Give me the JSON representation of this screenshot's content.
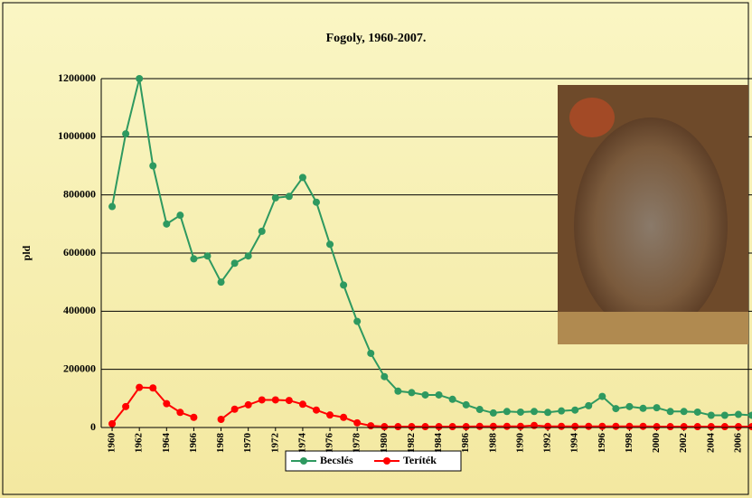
{
  "chart_data": {
    "type": "line",
    "title": "Fogoly, 1960-2007.",
    "y_label": "pld",
    "x": [
      1960,
      1961,
      1962,
      1963,
      1964,
      1965,
      1966,
      1967,
      1968,
      1969,
      1970,
      1971,
      1972,
      1973,
      1974,
      1975,
      1976,
      1977,
      1978,
      1979,
      1980,
      1981,
      1982,
      1983,
      1984,
      1985,
      1986,
      1987,
      1988,
      1989,
      1990,
      1991,
      1992,
      1993,
      1994,
      1995,
      1996,
      1997,
      1998,
      1999,
      2000,
      2001,
      2002,
      2003,
      2004,
      2005,
      2006,
      2007
    ],
    "series": [
      {
        "name": "Becslés",
        "color": "#2e9960",
        "values": [
          760000,
          1010000,
          1200000,
          900000,
          700000,
          730000,
          580000,
          590000,
          500000,
          565000,
          590000,
          675000,
          790000,
          795000,
          860000,
          775000,
          630000,
          490000,
          365000,
          255000,
          175000,
          125000,
          120000,
          112000,
          112000,
          97000,
          78000,
          62000,
          50000,
          55000,
          53000,
          55000,
          52000,
          57000,
          60000,
          75000,
          107000,
          65000,
          72000,
          66000,
          68000,
          55000,
          55000,
          53000,
          42000,
          42000,
          45000,
          42000
        ]
      },
      {
        "name": "Teríték",
        "color": "#ff0000",
        "values": [
          13000,
          72000,
          138000,
          136000,
          82000,
          52000,
          35000,
          null,
          28000,
          63000,
          78000,
          95000,
          95000,
          93000,
          80000,
          60000,
          43000,
          35000,
          16000,
          6000,
          3000,
          3000,
          3000,
          3000,
          3000,
          3000,
          3000,
          4000,
          4000,
          4000,
          4000,
          7000,
          4000,
          4000,
          4000,
          4000,
          4000,
          4000,
          4000,
          4000,
          3000,
          3000,
          3000,
          3000,
          3000,
          3000,
          3000,
          3000
        ]
      }
    ],
    "xlim": [
      1959.2,
      2007
    ],
    "xticks": [
      1960,
      1962,
      1964,
      1966,
      1968,
      1970,
      1972,
      1974,
      1976,
      1978,
      1980,
      1982,
      1984,
      1986,
      1988,
      1990,
      1992,
      1994,
      1996,
      1998,
      2000,
      2002,
      2004,
      2006
    ],
    "ylim": [
      0,
      1200000
    ],
    "yticks": [
      0,
      200000,
      400000,
      600000,
      800000,
      1000000,
      1200000
    ],
    "grid": true,
    "legend": "bottom"
  }
}
